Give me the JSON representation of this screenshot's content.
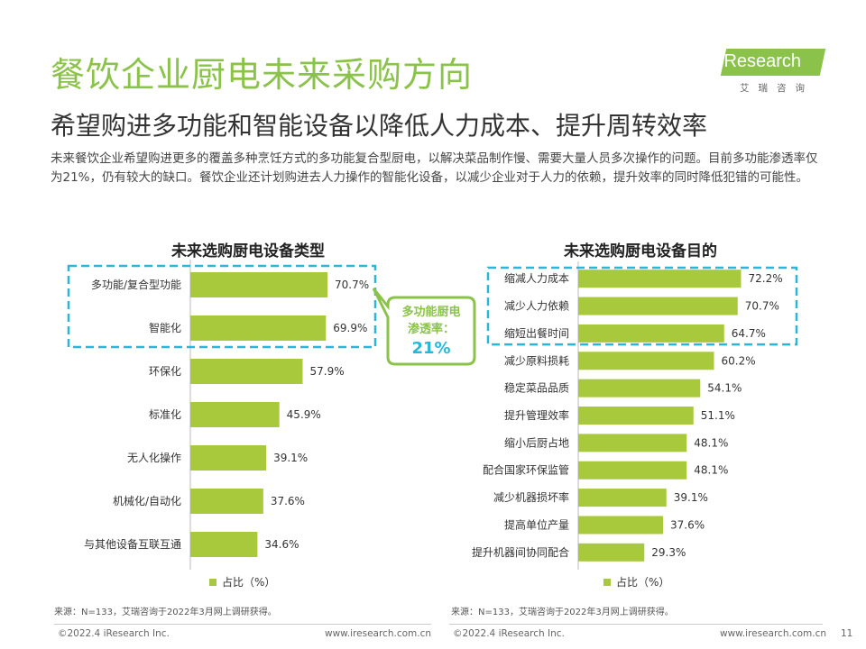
{
  "header": {
    "title": "餐饮企业厨电未来采购方向",
    "subtitle": "希望购进多功能和智能设备以降低人力成本、提升周转效率",
    "intro": "未来餐饮企业希望购进更多的覆盖多种烹饪方式的多功能复合型厨电，以解决菜品制作慢、需要大量人员多次操作的问题。目前多功能渗透率仅为21%，仍有较大的缺口。餐饮企业还计划购进去人力操作的智能化设备，以减少企业对于人力的依赖，提升效率的同时降低犯错的可能性。"
  },
  "logo": {
    "text": "iResearch",
    "cn": "艾瑞咨询"
  },
  "callout": {
    "line1": "多功能厨电",
    "line2": "渗透率：",
    "value": "21%"
  },
  "colors": {
    "bar": "#a8c93b",
    "accent": "#8bc34a",
    "dash": "#29b6d8"
  },
  "chart_data": [
    {
      "type": "bar",
      "orientation": "horizontal",
      "title": "未来选购厨电设备类型",
      "categories": [
        "多功能/复合型功能",
        "智能化",
        "环保化",
        "标准化",
        "无人化操作",
        "机械化/自动化",
        "与其他设备互联互通"
      ],
      "values": [
        70.7,
        69.9,
        57.9,
        45.9,
        39.1,
        37.6,
        34.6
      ],
      "labels": [
        "70.7%",
        "69.9%",
        "57.9%",
        "45.9%",
        "39.1%",
        "37.6%",
        "34.6%"
      ],
      "legend": "占比（%）",
      "highlight": [
        0,
        1
      ]
    },
    {
      "type": "bar",
      "orientation": "horizontal",
      "title": "未来选购厨电设备目的",
      "categories": [
        "缩减人力成本",
        "减少人力依赖",
        "缩短出餐时间",
        "减少原料损耗",
        "稳定菜品品质",
        "提升管理效率",
        "缩小后厨占地",
        "配合国家环保监管",
        "减少机器损坏率",
        "提高单位产量",
        "提升机器间协同配合"
      ],
      "values": [
        72.2,
        70.7,
        64.7,
        60.2,
        54.1,
        51.1,
        48.1,
        48.1,
        39.1,
        37.6,
        29.3
      ],
      "labels": [
        "72.2%",
        "70.7%",
        "64.7%",
        "60.2%",
        "54.1%",
        "51.1%",
        "48.1%",
        "48.1%",
        "39.1%",
        "37.6%",
        "29.3%"
      ],
      "legend": "占比（%）",
      "highlight": [
        0,
        1,
        2
      ]
    }
  ],
  "source_note": "来源：N=133，艾瑞咨询于2022年3月网上调研获得。",
  "footer": {
    "copyright": "©2022.4 iResearch Inc.",
    "website": "www.iresearch.com.cn",
    "page": "11"
  }
}
